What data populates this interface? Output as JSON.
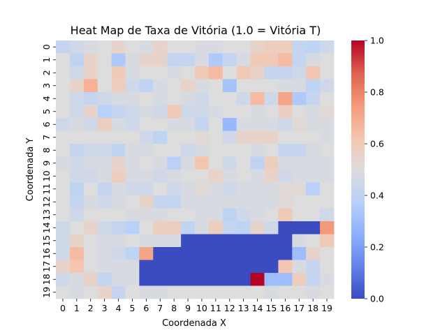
{
  "chart_data": {
    "type": "heatmap",
    "title": "Heat Map de Taxa de Vitória (1.0 = Vitória T)",
    "xlabel": "Coordenada X",
    "ylabel": "Coordenada Y",
    "x_categories": [
      "0",
      "1",
      "2",
      "3",
      "4",
      "5",
      "6",
      "7",
      "8",
      "9",
      "10",
      "11",
      "12",
      "13",
      "14",
      "15",
      "16",
      "17",
      "18",
      "19"
    ],
    "y_categories": [
      "0",
      "1",
      "2",
      "3",
      "4",
      "5",
      "6",
      "7",
      "8",
      "9",
      "10",
      "11",
      "12",
      "13",
      "14",
      "15",
      "16",
      "17",
      "18",
      "19"
    ],
    "colorscale": "coolwarm",
    "vmin": 0.0,
    "vmax": 1.0,
    "colorbar_ticks": [
      "0.0",
      "0.2",
      "0.4",
      "0.6",
      "0.8",
      "1.0"
    ],
    "colorbar_tick_values": [
      0.0,
      0.2,
      0.4,
      0.6,
      0.8,
      1.0
    ],
    "values": [
      [
        0.42,
        0.45,
        0.48,
        0.5,
        0.55,
        0.5,
        0.48,
        0.55,
        0.5,
        0.5,
        0.48,
        0.48,
        0.5,
        0.5,
        0.55,
        0.58,
        0.58,
        0.42,
        0.4,
        0.45
      ],
      [
        0.5,
        0.4,
        0.55,
        0.5,
        0.35,
        0.48,
        0.55,
        0.55,
        0.42,
        0.42,
        0.48,
        0.35,
        0.42,
        0.48,
        0.6,
        0.6,
        0.65,
        0.42,
        0.48,
        0.5
      ],
      [
        0.5,
        0.45,
        0.55,
        0.5,
        0.6,
        0.48,
        0.5,
        0.5,
        0.48,
        0.5,
        0.6,
        0.65,
        0.5,
        0.6,
        0.55,
        0.42,
        0.42,
        0.45,
        0.62,
        0.5
      ],
      [
        0.5,
        0.55,
        0.68,
        0.5,
        0.58,
        0.45,
        0.4,
        0.48,
        0.5,
        0.55,
        0.48,
        0.5,
        0.32,
        0.5,
        0.5,
        0.5,
        0.48,
        0.48,
        0.4,
        0.45
      ],
      [
        0.5,
        0.45,
        0.42,
        0.45,
        0.48,
        0.48,
        0.5,
        0.48,
        0.5,
        0.48,
        0.45,
        0.5,
        0.5,
        0.45,
        0.65,
        0.45,
        0.72,
        0.35,
        0.42,
        0.5
      ],
      [
        0.5,
        0.45,
        0.55,
        0.38,
        0.42,
        0.45,
        0.48,
        0.45,
        0.6,
        0.45,
        0.45,
        0.48,
        0.5,
        0.5,
        0.48,
        0.5,
        0.58,
        0.5,
        0.48,
        0.52
      ],
      [
        0.45,
        0.48,
        0.45,
        0.58,
        0.48,
        0.45,
        0.5,
        0.5,
        0.48,
        0.48,
        0.42,
        0.5,
        0.28,
        0.48,
        0.48,
        0.48,
        0.45,
        0.52,
        0.48,
        0.48
      ],
      [
        0.5,
        0.5,
        0.5,
        0.5,
        0.5,
        0.5,
        0.45,
        0.4,
        0.5,
        0.5,
        0.52,
        0.5,
        0.45,
        0.55,
        0.55,
        0.55,
        0.5,
        0.5,
        0.5,
        0.48
      ],
      [
        0.5,
        0.42,
        0.45,
        0.45,
        0.4,
        0.48,
        0.48,
        0.5,
        0.5,
        0.45,
        0.48,
        0.5,
        0.5,
        0.5,
        0.48,
        0.5,
        0.42,
        0.42,
        0.48,
        0.5
      ],
      [
        0.48,
        0.45,
        0.48,
        0.48,
        0.55,
        0.48,
        0.5,
        0.48,
        0.38,
        0.48,
        0.62,
        0.5,
        0.45,
        0.5,
        0.4,
        0.58,
        0.48,
        0.48,
        0.48,
        0.48
      ],
      [
        0.5,
        0.45,
        0.45,
        0.48,
        0.58,
        0.48,
        0.48,
        0.45,
        0.48,
        0.5,
        0.5,
        0.55,
        0.48,
        0.5,
        0.48,
        0.55,
        0.45,
        0.48,
        0.48,
        0.48
      ],
      [
        0.5,
        0.4,
        0.5,
        0.42,
        0.48,
        0.45,
        0.45,
        0.5,
        0.45,
        0.48,
        0.52,
        0.48,
        0.45,
        0.48,
        0.48,
        0.48,
        0.52,
        0.52,
        0.38,
        0.5
      ],
      [
        0.5,
        0.42,
        0.48,
        0.45,
        0.48,
        0.5,
        0.55,
        0.42,
        0.42,
        0.48,
        0.48,
        0.48,
        0.48,
        0.48,
        0.48,
        0.48,
        0.52,
        0.5,
        0.5,
        0.5
      ],
      [
        0.5,
        0.45,
        0.5,
        0.5,
        0.5,
        0.48,
        0.48,
        0.48,
        0.5,
        0.5,
        0.48,
        0.48,
        0.4,
        0.45,
        0.48,
        0.5,
        0.6,
        0.5,
        0.5,
        0.45
      ],
      [
        0.45,
        0.5,
        0.55,
        0.45,
        0.42,
        0.38,
        0.5,
        0.58,
        0.58,
        0.4,
        0.48,
        0.58,
        0.42,
        0.4,
        0.55,
        0.45,
        0.0,
        0.0,
        0.0,
        0.75
      ],
      [
        0.45,
        0.55,
        0.5,
        0.48,
        0.48,
        0.5,
        0.48,
        0.48,
        0.48,
        0.0,
        0.0,
        0.0,
        0.0,
        0.0,
        0.0,
        0.0,
        0.0,
        0.48,
        0.5,
        0.6
      ],
      [
        0.45,
        0.65,
        0.5,
        0.48,
        0.45,
        0.4,
        0.72,
        0.0,
        0.0,
        0.0,
        0.0,
        0.0,
        0.0,
        0.0,
        0.0,
        0.0,
        0.0,
        0.3,
        0.55,
        0.5
      ],
      [
        0.55,
        0.62,
        0.5,
        0.48,
        0.48,
        0.48,
        0.0,
        0.0,
        0.0,
        0.0,
        0.0,
        0.0,
        0.0,
        0.0,
        0.0,
        0.0,
        0.62,
        0.48,
        0.42,
        0.5
      ],
      [
        0.45,
        0.48,
        0.55,
        0.42,
        0.48,
        0.48,
        0.0,
        0.0,
        0.0,
        0.0,
        0.0,
        0.0,
        0.0,
        0.0,
        1.0,
        0.3,
        0.3,
        0.58,
        0.42,
        0.48
      ],
      [
        0.5,
        0.48,
        0.5,
        0.55,
        0.42,
        0.5,
        0.48,
        0.48,
        0.5,
        0.5,
        0.5,
        0.5,
        0.5,
        0.5,
        0.5,
        0.48,
        0.5,
        0.5,
        0.48,
        0.5
      ]
    ]
  }
}
